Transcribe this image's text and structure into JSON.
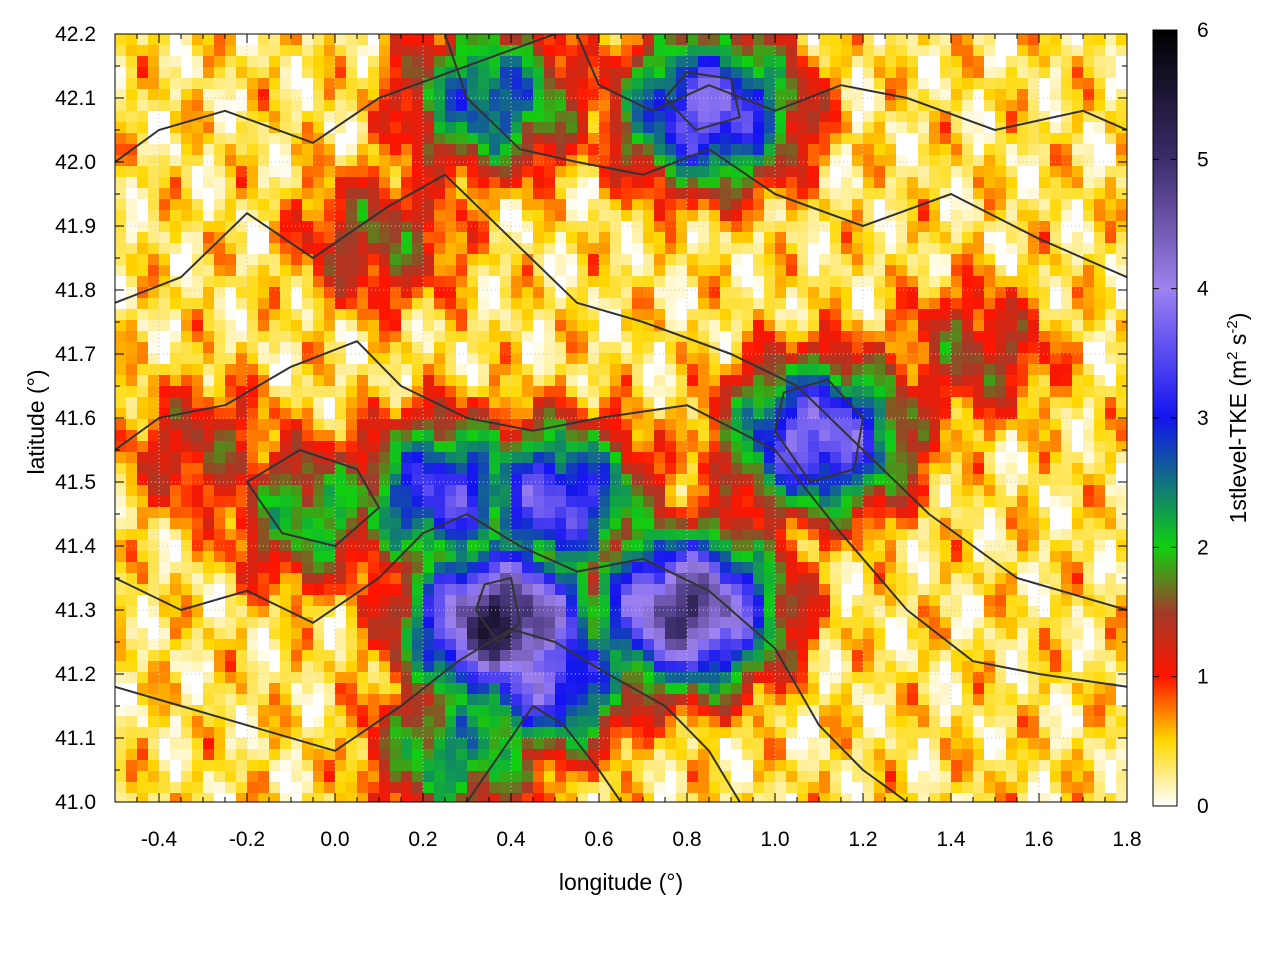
{
  "chart_data": {
    "type": "heatmap",
    "title": "",
    "xlabel": "longitude (°)",
    "ylabel": "latitude (°)",
    "xlim": [
      -0.5,
      1.8
    ],
    "ylim": [
      41.0,
      42.2
    ],
    "x_ticks": [
      "-0.4",
      "-0.2",
      "0.0",
      "0.2",
      "0.4",
      "0.6",
      "0.8",
      "1.0",
      "1.2",
      "1.4",
      "1.6",
      "1.8"
    ],
    "x_tick_values": [
      -0.4,
      -0.2,
      0.0,
      0.2,
      0.4,
      0.6,
      0.8,
      1.0,
      1.2,
      1.4,
      1.6,
      1.8
    ],
    "y_ticks": [
      "41.0",
      "41.1",
      "41.2",
      "41.3",
      "41.4",
      "41.5",
      "41.6",
      "41.7",
      "41.8",
      "41.9",
      "42.0",
      "42.1",
      "42.2"
    ],
    "y_tick_values": [
      41.0,
      41.1,
      41.2,
      41.3,
      41.4,
      41.5,
      41.6,
      41.7,
      41.8,
      41.9,
      42.0,
      42.1,
      42.2
    ],
    "grid": true,
    "colorbar": {
      "label": "1stlevel-TKE (m² s⁻²)",
      "label_main": "1stlevel-TKE (m",
      "label_sup1": "2",
      "label_mid": " s",
      "label_sup2": "-2",
      "label_end": ")",
      "range": [
        0,
        6
      ],
      "ticks": [
        "0",
        "1",
        "2",
        "3",
        "4",
        "5",
        "6"
      ],
      "tick_values": [
        0,
        1,
        2,
        3,
        4,
        5,
        6
      ],
      "colormap": [
        {
          "v": 0.0,
          "color": "#ffffff"
        },
        {
          "v": 0.5,
          "color": "#ffd800"
        },
        {
          "v": 1.0,
          "color": "#ff1400"
        },
        {
          "v": 1.5,
          "color": "#a03c28"
        },
        {
          "v": 2.0,
          "color": "#10d010"
        },
        {
          "v": 3.0,
          "color": "#1414f0"
        },
        {
          "v": 4.0,
          "color": "#9e82f0"
        },
        {
          "v": 5.0,
          "color": "#3c2c6a"
        },
        {
          "v": 6.0,
          "color": "#000000"
        }
      ]
    },
    "field_centers": [
      {
        "lon": -0.05,
        "lat": 41.45,
        "tke": 2.1
      },
      {
        "lon": 0.25,
        "lat": 41.48,
        "tke": 3.4
      },
      {
        "lon": 0.5,
        "lat": 41.47,
        "tke": 3.6
      },
      {
        "lon": 0.38,
        "lat": 41.28,
        "tke": 5.4
      },
      {
        "lon": 0.47,
        "lat": 41.2,
        "tke": 3.8
      },
      {
        "lon": 0.8,
        "lat": 41.3,
        "tke": 5.0
      },
      {
        "lon": 1.1,
        "lat": 41.57,
        "tke": 3.9
      },
      {
        "lon": 0.85,
        "lat": 42.08,
        "tke": 3.8
      },
      {
        "lon": 0.35,
        "lat": 42.1,
        "tke": 2.8
      },
      {
        "lon": 0.28,
        "lat": 41.08,
        "tke": 2.4
      },
      {
        "lon": 0.1,
        "lat": 41.88,
        "tke": 1.6
      },
      {
        "lon": -0.3,
        "lat": 41.55,
        "tke": 1.4
      },
      {
        "lon": 1.45,
        "lat": 41.7,
        "tke": 1.5
      },
      {
        "lon": 1.5,
        "lat": 41.05,
        "tke": 0.45
      }
    ],
    "contour_lines": [
      [
        [
          -0.5,
          42.0
        ],
        [
          -0.4,
          42.05
        ],
        [
          -0.25,
          42.08
        ],
        [
          -0.05,
          42.03
        ],
        [
          0.1,
          42.1
        ],
        [
          0.3,
          42.15
        ],
        [
          0.5,
          42.2
        ]
      ],
      [
        [
          -0.5,
          41.78
        ],
        [
          -0.35,
          41.82
        ],
        [
          -0.2,
          41.92
        ],
        [
          -0.05,
          41.85
        ],
        [
          0.12,
          41.93
        ],
        [
          0.25,
          41.98
        ],
        [
          0.4,
          41.88
        ],
        [
          0.55,
          41.78
        ],
        [
          0.7,
          41.75
        ],
        [
          0.9,
          41.7
        ],
        [
          1.05,
          41.65
        ],
        [
          1.2,
          41.55
        ],
        [
          1.35,
          41.45
        ],
        [
          1.55,
          41.35
        ],
        [
          1.8,
          41.3
        ]
      ],
      [
        [
          -0.5,
          41.55
        ],
        [
          -0.4,
          41.6
        ],
        [
          -0.25,
          41.62
        ],
        [
          -0.1,
          41.68
        ],
        [
          0.05,
          41.72
        ],
        [
          0.15,
          41.65
        ],
        [
          0.3,
          41.6
        ],
        [
          0.45,
          41.58
        ],
        [
          0.6,
          41.6
        ],
        [
          0.8,
          41.62
        ],
        [
          1.0,
          41.55
        ],
        [
          1.15,
          41.42
        ],
        [
          1.3,
          41.3
        ],
        [
          1.45,
          41.22
        ],
        [
          1.6,
          41.2
        ],
        [
          1.8,
          41.18
        ]
      ],
      [
        [
          -0.5,
          41.35
        ],
        [
          -0.35,
          41.3
        ],
        [
          -0.2,
          41.33
        ],
        [
          -0.05,
          41.28
        ],
        [
          0.1,
          41.35
        ],
        [
          0.2,
          41.42
        ],
        [
          0.3,
          41.45
        ],
        [
          0.42,
          41.4
        ],
        [
          0.55,
          41.36
        ],
        [
          0.7,
          41.38
        ],
        [
          0.85,
          41.33
        ],
        [
          1.0,
          41.24
        ],
        [
          1.1,
          41.12
        ],
        [
          1.2,
          41.05
        ],
        [
          1.3,
          41.0
        ]
      ],
      [
        [
          -0.5,
          41.18
        ],
        [
          -0.35,
          41.15
        ],
        [
          -0.2,
          41.12
        ],
        [
          0.0,
          41.08
        ],
        [
          0.15,
          41.15
        ],
        [
          0.28,
          41.22
        ],
        [
          0.4,
          41.27
        ],
        [
          0.5,
          41.25
        ],
        [
          0.62,
          41.2
        ],
        [
          0.75,
          41.15
        ],
        [
          0.85,
          41.08
        ],
        [
          0.92,
          41.0
        ]
      ],
      [
        [
          0.3,
          41.0
        ],
        [
          0.38,
          41.08
        ],
        [
          0.45,
          41.15
        ],
        [
          0.52,
          41.12
        ],
        [
          0.6,
          41.05
        ],
        [
          0.65,
          41.0
        ]
      ],
      [
        [
          0.25,
          42.2
        ],
        [
          0.3,
          42.1
        ],
        [
          0.42,
          42.02
        ],
        [
          0.55,
          42.0
        ],
        [
          0.7,
          41.98
        ],
        [
          0.85,
          42.02
        ],
        [
          1.0,
          41.95
        ],
        [
          1.2,
          41.9
        ],
        [
          1.4,
          41.95
        ],
        [
          1.6,
          41.88
        ],
        [
          1.8,
          41.82
        ]
      ],
      [
        [
          0.55,
          42.2
        ],
        [
          0.6,
          42.12
        ],
        [
          0.72,
          42.08
        ],
        [
          0.85,
          42.12
        ],
        [
          1.0,
          42.08
        ],
        [
          1.15,
          42.12
        ],
        [
          1.3,
          42.1
        ],
        [
          1.5,
          42.05
        ],
        [
          1.7,
          42.08
        ],
        [
          1.8,
          42.05
        ]
      ],
      [
        [
          -0.2,
          41.5
        ],
        [
          -0.12,
          41.42
        ],
        [
          0.0,
          41.4
        ],
        [
          0.1,
          41.46
        ],
        [
          0.05,
          41.52
        ],
        [
          -0.08,
          41.55
        ],
        [
          -0.2,
          41.5
        ]
      ],
      [
        [
          1.0,
          41.58
        ],
        [
          1.08,
          41.5
        ],
        [
          1.18,
          41.52
        ],
        [
          1.2,
          41.6
        ],
        [
          1.12,
          41.66
        ],
        [
          1.02,
          41.64
        ],
        [
          1.0,
          41.58
        ]
      ],
      [
        [
          0.32,
          41.3
        ],
        [
          0.37,
          41.25
        ],
        [
          0.42,
          41.28
        ],
        [
          0.4,
          41.35
        ],
        [
          0.34,
          41.34
        ],
        [
          0.32,
          41.3
        ]
      ],
      [
        [
          0.75,
          42.1
        ],
        [
          0.82,
          42.05
        ],
        [
          0.92,
          42.07
        ],
        [
          0.9,
          42.13
        ],
        [
          0.8,
          42.14
        ],
        [
          0.75,
          42.1
        ]
      ]
    ]
  }
}
